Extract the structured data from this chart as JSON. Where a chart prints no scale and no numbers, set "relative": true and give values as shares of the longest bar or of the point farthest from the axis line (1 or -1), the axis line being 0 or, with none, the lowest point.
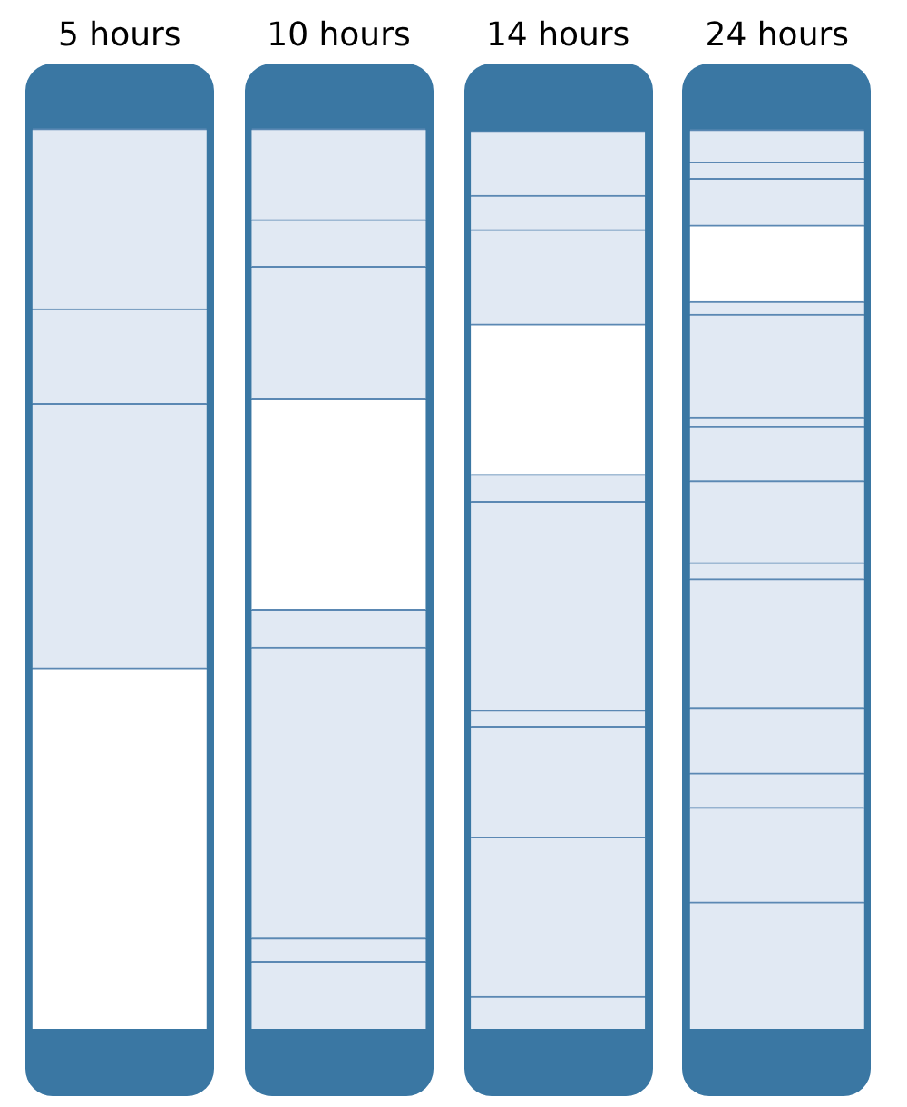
{
  "chart_data": {
    "type": "bar",
    "relative": true,
    "stacked": true,
    "categories": [
      "5 hours",
      "10 hours",
      "14 hours",
      "24 hours"
    ],
    "series": [
      {
        "colors": [
          "#ffffff",
          "#e1e9f3",
          "#e1e9f3",
          "#e1e9f3"
        ],
        "values": [
          0.401,
          0.075,
          0.036,
          0.141
        ]
      },
      {
        "colors": [
          "#e1e9f3",
          "#e1e9f3",
          "#e1e9f3",
          "#e1e9f3"
        ],
        "values": [
          0.294,
          0.026,
          0.177,
          0.105
        ]
      },
      {
        "colors": [
          "#e1e9f3",
          "#e1e9f3",
          "#e1e9f3",
          "#e1e9f3"
        ],
        "values": [
          0.105,
          0.323,
          0.123,
          0.038
        ]
      },
      {
        "colors": [
          "#e1e9f3",
          "#e1e9f3",
          "#e1e9f3",
          "#e1e9f3"
        ],
        "values": [
          0.2,
          0.042,
          0.018,
          0.073
        ]
      },
      {
        "colors": [
          null,
          "#ffffff",
          "#e1e9f3",
          "#e1e9f3"
        ],
        "values": [
          null,
          0.234,
          0.232,
          0.143
        ]
      },
      {
        "colors": [
          null,
          "#e1e9f3",
          "#e1e9f3",
          "#e1e9f3"
        ],
        "values": [
          null,
          0.147,
          0.03,
          0.018
        ]
      },
      {
        "colors": [
          null,
          "#e1e9f3",
          "#ffffff",
          "#e1e9f3"
        ],
        "values": [
          null,
          0.052,
          0.167,
          0.091
        ]
      },
      {
        "colors": [
          null,
          "#e1e9f3",
          "#e1e9f3",
          "#e1e9f3"
        ],
        "values": [
          null,
          0.101,
          0.105,
          0.06
        ]
      },
      {
        "colors": [
          null,
          null,
          "#e1e9f3",
          "#e1e9f3"
        ],
        "values": [
          null,
          null,
          0.038,
          0.01
        ]
      },
      {
        "colors": [
          null,
          null,
          "#e1e9f3",
          "#e1e9f3"
        ],
        "values": [
          null,
          null,
          0.071,
          0.115
        ]
      },
      {
        "colors": [
          null,
          null,
          null,
          "#e1e9f3"
        ],
        "values": [
          null,
          null,
          null,
          0.014
        ]
      },
      {
        "colors": [
          null,
          null,
          null,
          "#ffffff"
        ],
        "values": [
          null,
          null,
          null,
          0.085
        ]
      },
      {
        "colors": [
          null,
          null,
          null,
          "#e1e9f3"
        ],
        "values": [
          null,
          null,
          null,
          0.052
        ]
      },
      {
        "colors": [
          null,
          null,
          null,
          "#e1e9f3"
        ],
        "values": [
          null,
          null,
          null,
          0.018
        ]
      },
      {
        "colors": [
          null,
          null,
          null,
          "#e1e9f3"
        ],
        "values": [
          null,
          null,
          null,
          0.036
        ]
      }
    ]
  }
}
